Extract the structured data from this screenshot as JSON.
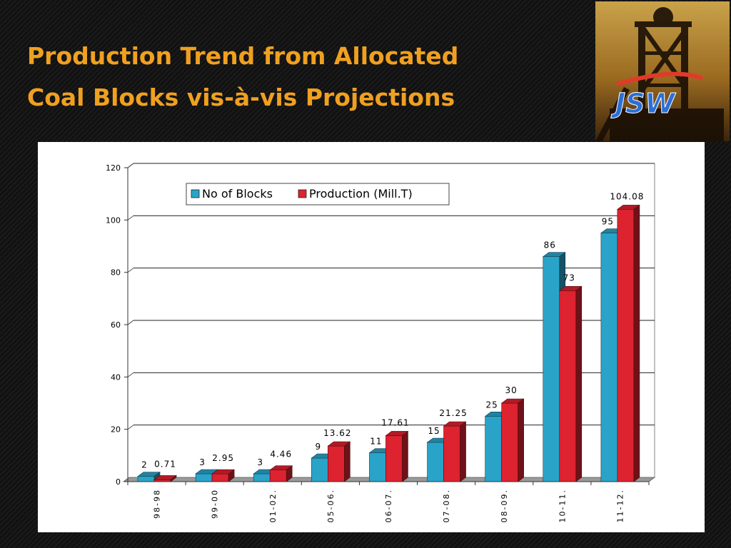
{
  "slide": {
    "title_line1": "Production Trend from Allocated",
    "title_line2": "Coal Blocks vis-à-vis Projections"
  },
  "logo": {
    "text": "JSW",
    "icon": "mine-headframe-icon"
  },
  "chart_data": {
    "type": "bar",
    "title": "",
    "xlabel": "",
    "ylabel": "",
    "categories": [
      "98-98",
      "99-00",
      "01-02.",
      "05-06.",
      "06-07.",
      "07-08.",
      "08-09.",
      "10-11.",
      "11-12."
    ],
    "series": [
      {
        "name": "No of Blocks",
        "color": "#2aa3c9",
        "values": [
          2,
          3,
          3,
          9,
          11,
          15,
          25,
          86,
          95
        ],
        "labels": [
          "2",
          "3",
          "3",
          "9",
          "11",
          "15",
          "25",
          "86",
          "95"
        ]
      },
      {
        "name": "Production (Mill.T)",
        "color": "#dd2230",
        "values": [
          0.71,
          2.95,
          4.46,
          13.62,
          17.61,
          21.25,
          30,
          73,
          104.08
        ],
        "labels": [
          "0.71",
          "2.95",
          "4.46",
          "13.62",
          "17.61",
          "21.25",
          "30",
          "73",
          "104.08"
        ]
      }
    ],
    "ylim": [
      0,
      120
    ],
    "yticks": [
      0,
      20,
      40,
      60,
      80,
      100,
      120
    ],
    "grid": true,
    "legend_position": "top-center",
    "style": "3d"
  }
}
